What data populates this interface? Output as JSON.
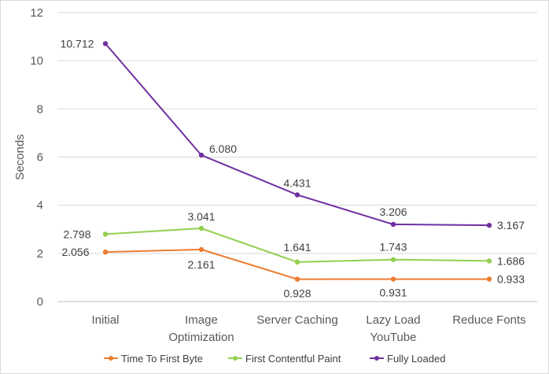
{
  "chart_data": {
    "type": "line",
    "title": "",
    "xlabel": "",
    "ylabel": "Seconds",
    "ylim": [
      0,
      12
    ],
    "yticks": [
      0,
      2,
      4,
      6,
      8,
      10,
      12
    ],
    "grid": true,
    "legend_position": "bottom",
    "categories": [
      [
        "Initial"
      ],
      [
        "Image",
        "Optimization"
      ],
      [
        "Server Caching"
      ],
      [
        "Lazy Load",
        "YouTube"
      ],
      [
        "Reduce Fonts"
      ]
    ],
    "series": [
      {
        "name": "Time To First Byte",
        "color": "#ED7D31",
        "values": [
          2.056,
          2.161,
          0.928,
          0.931,
          0.933
        ],
        "labels": [
          "2.056",
          "2.161",
          "0.928",
          "0.931",
          "0.933"
        ]
      },
      {
        "name": "First Contentful Paint",
        "color": "#92D050",
        "values": [
          2.798,
          3.041,
          1.641,
          1.743,
          1.686
        ],
        "labels": [
          "2.798",
          "3.041",
          "1.641",
          "1.743",
          "1.686"
        ]
      },
      {
        "name": "Fully Loaded",
        "color": "#7030A0",
        "values": [
          10.712,
          6.08,
          4.431,
          3.206,
          3.167
        ],
        "labels": [
          "10.712",
          "6.080",
          "4.431",
          "3.206",
          "3.167"
        ]
      }
    ]
  }
}
